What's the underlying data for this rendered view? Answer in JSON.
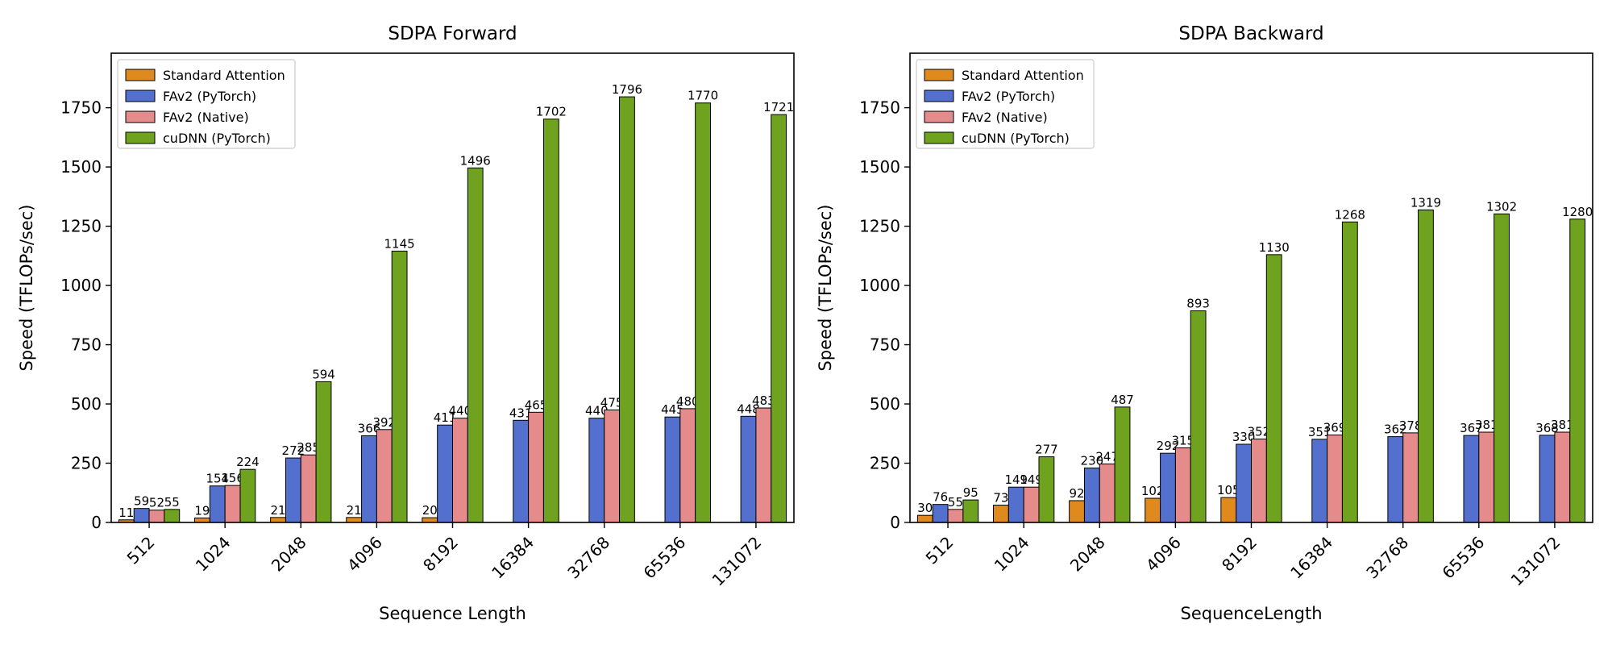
{
  "chart_data": [
    {
      "type": "bar",
      "title": "SDPA Forward",
      "xlabel": "Sequence Length",
      "ylabel": "Speed (TFLOPs/sec)",
      "ylim": [
        0,
        1980
      ],
      "yticks": [
        0,
        250,
        500,
        750,
        1000,
        1250,
        1500,
        1750
      ],
      "grid": false,
      "legend_position": "top-left",
      "categories": [
        "512",
        "1024",
        "2048",
        "4096",
        "8192",
        "16384",
        "32768",
        "65536",
        "131072"
      ],
      "series": [
        {
          "name": "Standard Attention",
          "color": "#e08a1e",
          "values": [
            11,
            19,
            21,
            21,
            20,
            null,
            null,
            null,
            null
          ]
        },
        {
          "name": "FAv2 (PyTorch)",
          "color": "#5470cf",
          "values": [
            59,
            154,
            272,
            366,
            411,
            431,
            440,
            445,
            448
          ]
        },
        {
          "name": "FAv2 (Native)",
          "color": "#e58b8b",
          "values": [
            52,
            156,
            285,
            392,
            440,
            465,
            475,
            480,
            483
          ]
        },
        {
          "name": "cuDNN (PyTorch)",
          "color": "#6fa31f",
          "values": [
            55,
            224,
            594,
            1145,
            1496,
            1702,
            1796,
            1770,
            1721
          ]
        }
      ]
    },
    {
      "type": "bar",
      "title": "SDPA Backward",
      "xlabel": "SequenceLength",
      "ylabel": "Speed (TFLOPs/sec)",
      "ylim": [
        0,
        1980
      ],
      "yticks": [
        0,
        250,
        500,
        750,
        1000,
        1250,
        1500,
        1750
      ],
      "grid": false,
      "legend_position": "top-left",
      "categories": [
        "512",
        "1024",
        "2048",
        "4096",
        "8192",
        "16384",
        "32768",
        "65536",
        "131072"
      ],
      "series": [
        {
          "name": "Standard Attention",
          "color": "#e08a1e",
          "values": [
            30,
            73,
            92,
            102,
            105,
            null,
            null,
            null,
            null
          ]
        },
        {
          "name": "FAv2 (PyTorch)",
          "color": "#5470cf",
          "values": [
            76,
            149,
            230,
            292,
            330,
            351,
            362,
            367,
            368
          ]
        },
        {
          "name": "FAv2 (Native)",
          "color": "#e58b8b",
          "values": [
            55,
            149,
            247,
            315,
            352,
            369,
            378,
            381,
            381
          ]
        },
        {
          "name": "cuDNN (PyTorch)",
          "color": "#6fa31f",
          "values": [
            95,
            277,
            487,
            893,
            1130,
            1268,
            1319,
            1302,
            1280
          ]
        }
      ]
    }
  ]
}
